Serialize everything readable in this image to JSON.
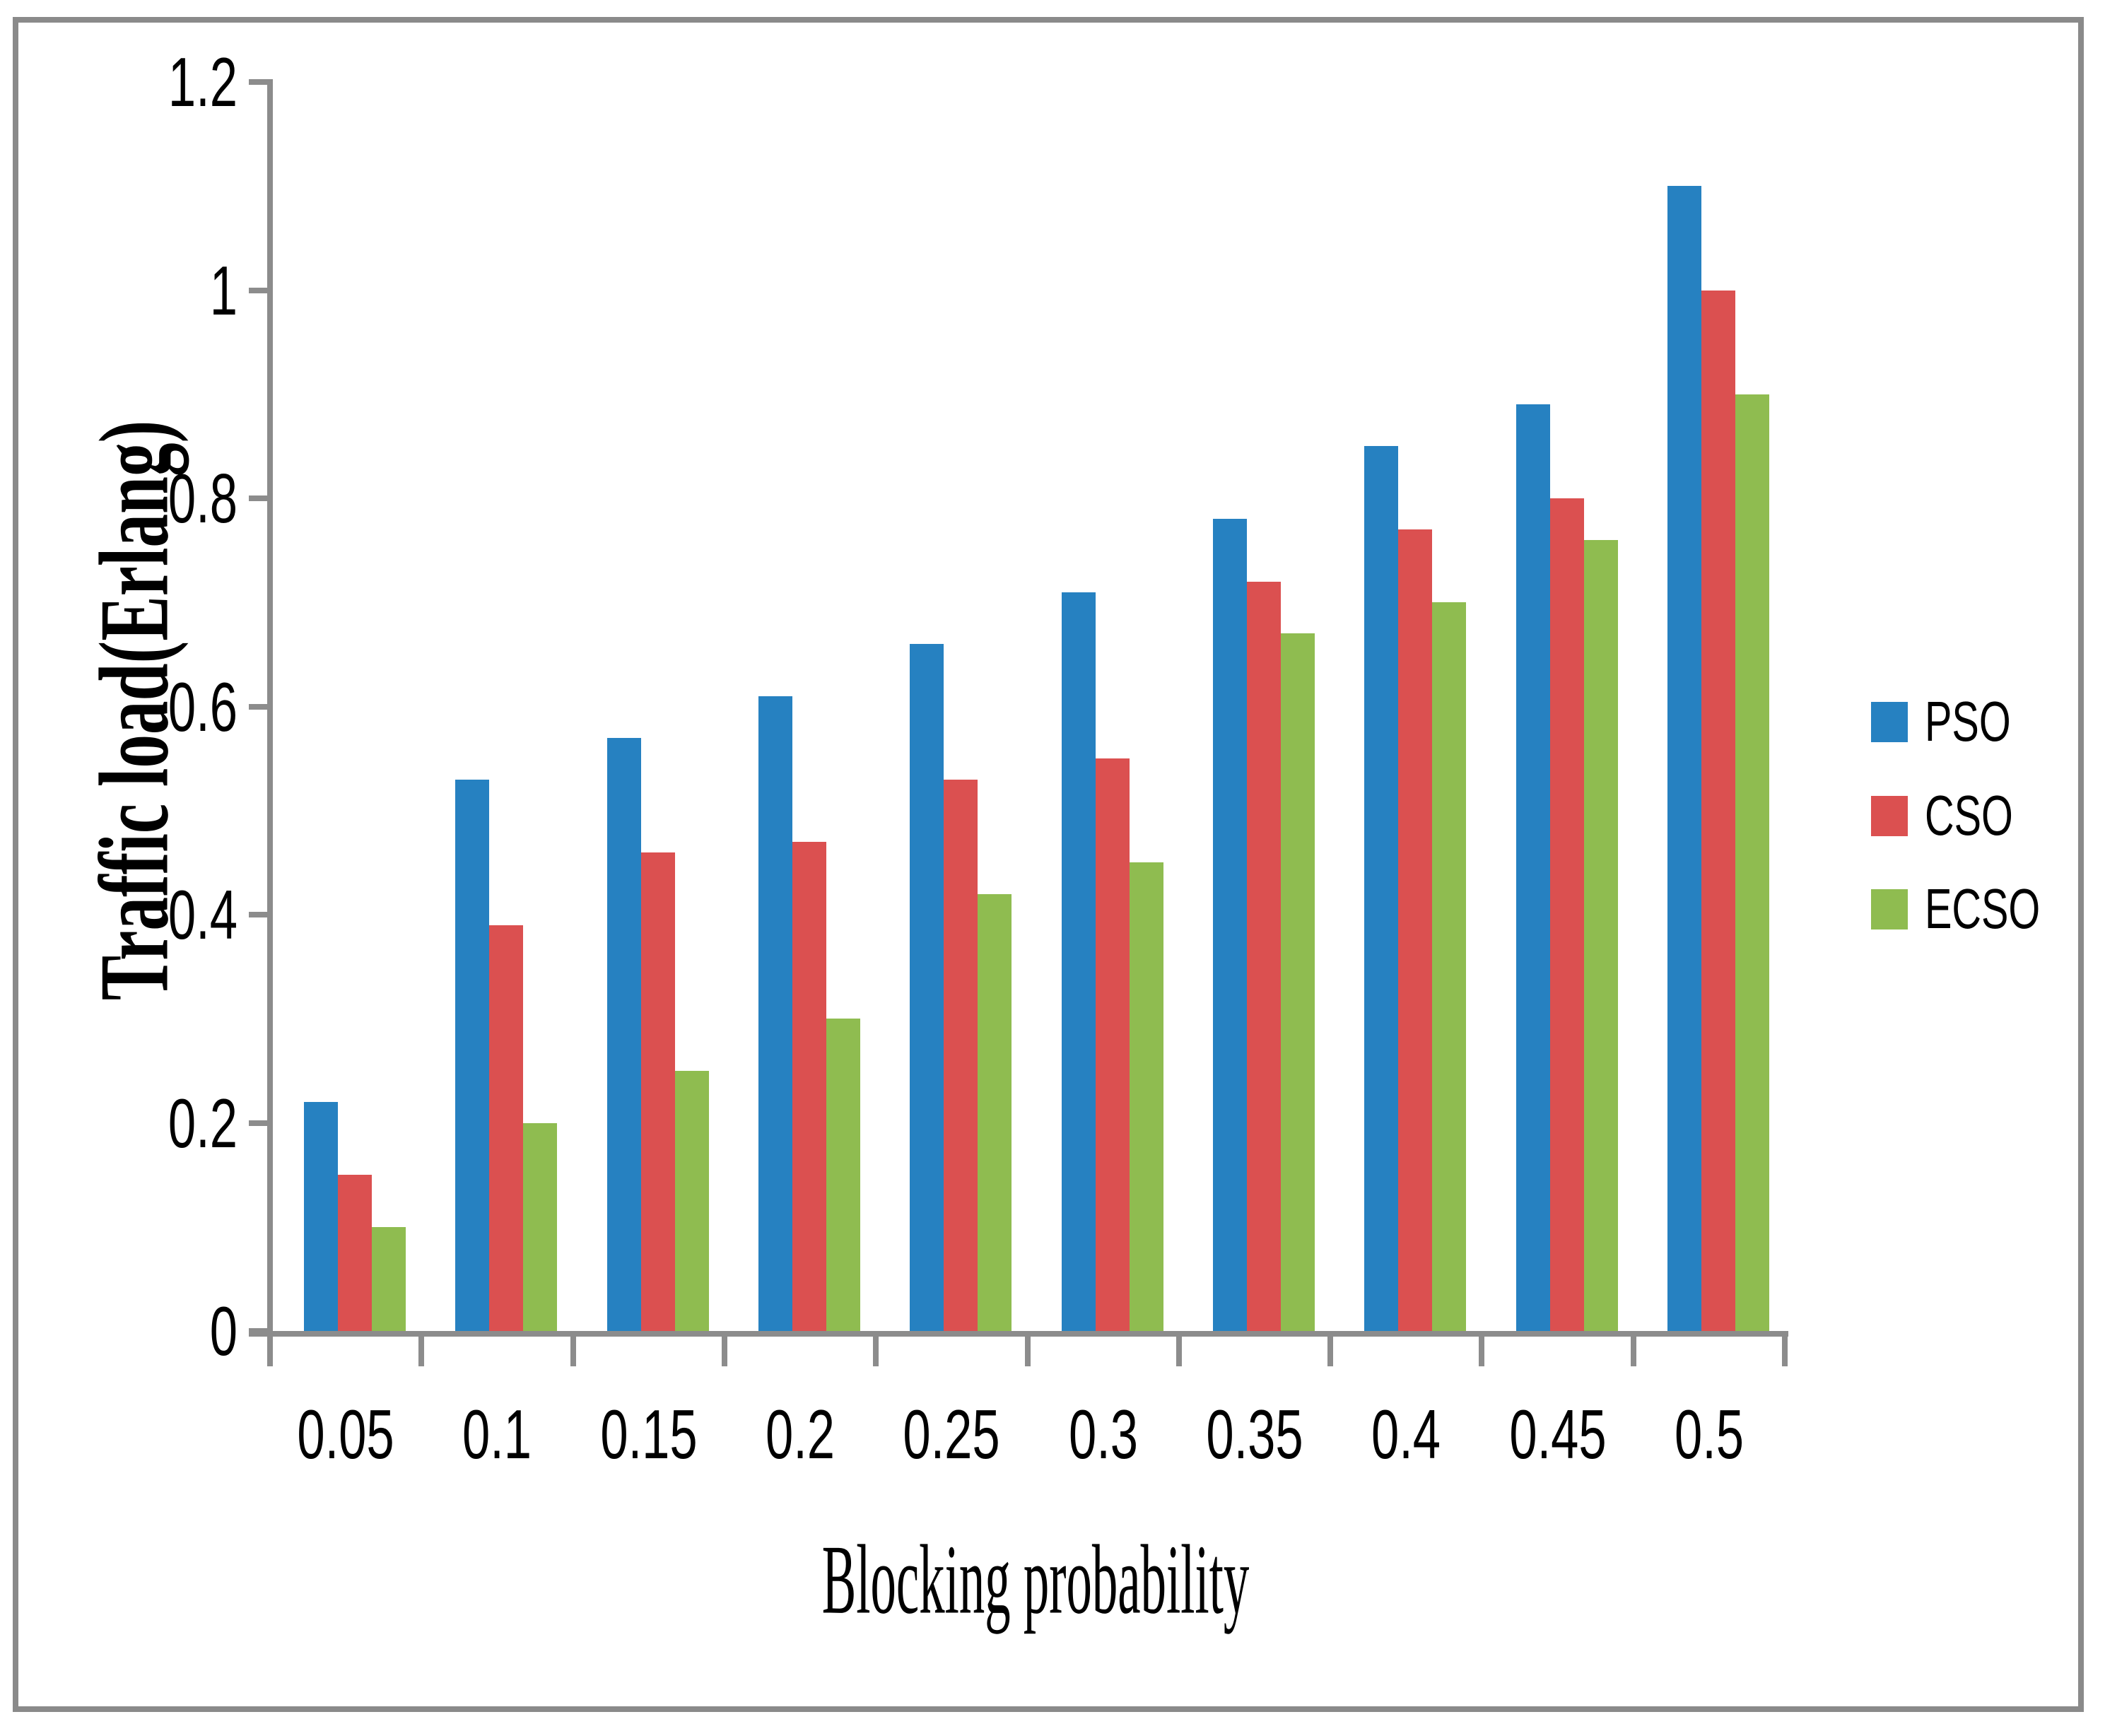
{
  "figure": {
    "background": "#FFFFFF",
    "border_color": "#8A8A8A",
    "axis_color": "#8C8C8C"
  },
  "chart_data": {
    "type": "bar",
    "title": "",
    "xlabel": "Blocking probability",
    "ylabel": "Traffic load(Erlang)",
    "categories": [
      "0.05",
      "0.1",
      "0.15",
      "0.2",
      "0.25",
      "0.3",
      "0.35",
      "0.4",
      "0.45",
      "0.5"
    ],
    "series": [
      {
        "name": "PSO",
        "color": "#2681C1",
        "values": [
          0.22,
          0.53,
          0.57,
          0.61,
          0.66,
          0.71,
          0.78,
          0.85,
          0.89,
          1.1
        ]
      },
      {
        "name": "CSO",
        "color": "#DB5050",
        "values": [
          0.15,
          0.39,
          0.46,
          0.47,
          0.53,
          0.55,
          0.72,
          0.77,
          0.8,
          1.0
        ]
      },
      {
        "name": "ECSO",
        "color": "#8FBC50",
        "values": [
          0.1,
          0.2,
          0.25,
          0.3,
          0.42,
          0.45,
          0.67,
          0.7,
          0.76,
          0.9
        ]
      }
    ],
    "y_ticks": [
      {
        "label": "0",
        "value": 0.0
      },
      {
        "label": "0.2",
        "value": 0.2
      },
      {
        "label": "0.4",
        "value": 0.4
      },
      {
        "label": "0.6",
        "value": 0.6
      },
      {
        "label": "0.8",
        "value": 0.8
      },
      {
        "label": "1",
        "value": 1.0
      },
      {
        "label": "1.2",
        "value": 1.2
      }
    ],
    "ylim": [
      0,
      1.2
    ],
    "grid": false,
    "legend_position": "right"
  }
}
